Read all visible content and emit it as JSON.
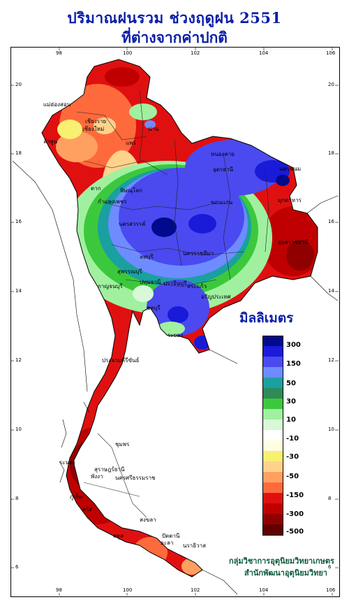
{
  "title_line1": "ปริมาณฝนรวม ช่วงฤดูฝน 2551",
  "title_line2": "ที่ต่างจากค่าปกติ",
  "legend": {
    "title": "มิลลิเมตร",
    "colors": [
      "#000a8c",
      "#1a1ad9",
      "#4a4af0",
      "#6e8cff",
      "#1aa0a0",
      "#2e8b57",
      "#3cc83c",
      "#a0f0a0",
      "#d8f8d8",
      "#ffffff",
      "#fffde0",
      "#f8f070",
      "#ffd28c",
      "#ffa060",
      "#ff6a3c",
      "#e01010",
      "#c00000",
      "#900000",
      "#600000"
    ],
    "labels": [
      "300",
      "150",
      "50",
      "30",
      "10",
      "-10",
      "-30",
      "-50",
      "-150",
      "-300",
      "-500"
    ]
  },
  "axes": {
    "longitudes": [
      "98",
      "100",
      "102",
      "104",
      "106"
    ],
    "latitudes": [
      "20",
      "18",
      "16",
      "14",
      "12",
      "10",
      "8",
      "6"
    ]
  },
  "provinces": [
    "เชียงราย",
    "เชียงใหม่",
    "แม่ฮ่องสอน",
    "ลำพูน",
    "น่าน",
    "แพร่",
    "หนองคาย",
    "อุดรธานี",
    "นครพนม",
    "ตาก",
    "พิษณุโลก",
    "กำแพงเพชร",
    "มุกดาหาร",
    "ขอนแก่น",
    "นครสวรรค์",
    "อุบลราชธานี",
    "นครราชสีมา",
    "ลพบุรี",
    "สุพรรณบุรี",
    "กาญจนบุรี",
    "ปทุมธานี",
    "ปราจีนบุรี",
    "สระแก้ว",
    "อรัญประเทศ",
    "ชลบุรี",
    "ระยอง",
    "ประจวบคีรีขันธ์",
    "ชุมพร",
    "ระนอง",
    "สุราษฎร์ธานี",
    "นครศรีธรรมราช",
    "พังงา",
    "ภูเก็ต",
    "สงขลา",
    "ปัตตานี",
    "นราธิวาส",
    "ยะลา",
    "ตรัง",
    "สตูล"
  ],
  "credit_line1": "กลุ่มวิชาการอุตุนิยมวิทยาเกษตร",
  "credit_line2": "สำนักพัฒนาอุตุนิยมวิทยา"
}
